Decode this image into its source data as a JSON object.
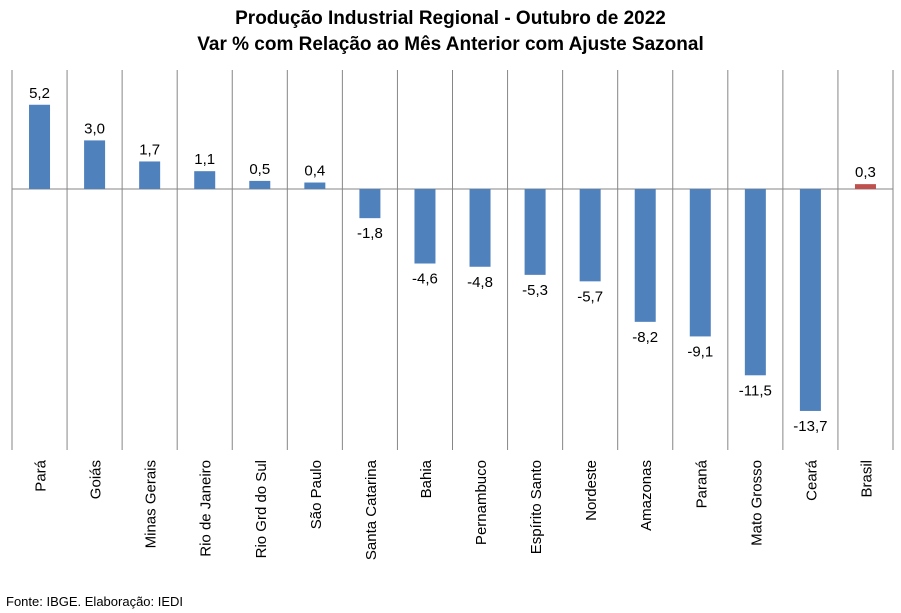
{
  "title": "Produção Industrial Regional  - Outubro de 2022",
  "subtitle": "Var % com Relação ao Mês Anterior com Ajuste Sazonal",
  "source": "Fonte: IBGE. Elaboração: IEDI",
  "colors": {
    "bar": "#4f81bd",
    "highlight": "#c0504d",
    "grid": "#868686"
  },
  "chart_data": {
    "type": "bar",
    "title": "Produção Industrial Regional  - Outubro de 2022",
    "subtitle": "Var % com Relação ao Mês Anterior com Ajuste Sazonal",
    "categories": [
      "Pará",
      "Goiás",
      "Minas Gerais",
      "Rio de Janeiro",
      "Rio Grd do Sul",
      "São Paulo",
      "Santa Catarina",
      "Bahia",
      "Pernambuco",
      "Espírito Santo",
      "Nordeste",
      "Amazonas",
      "Paraná",
      "Mato Grosso",
      "Ceará",
      "Brasil"
    ],
    "values": [
      5.2,
      3.0,
      1.7,
      1.1,
      0.5,
      0.4,
      -1.8,
      -4.6,
      -4.8,
      -5.3,
      -5.7,
      -8.2,
      -9.1,
      -11.5,
      -13.7,
      0.3
    ],
    "value_labels": [
      "5,2",
      "3,0",
      "1,7",
      "1,1",
      "0,5",
      "0,4",
      "-1,8",
      "-4,6",
      "-4,8",
      "-5,3",
      "-5,7",
      "-8,2",
      "-9,1",
      "-11,5",
      "-13,7",
      "0,3"
    ],
    "highlight": [
      "Brasil"
    ],
    "ylim": [
      -16,
      7
    ],
    "xlabel": "",
    "ylabel": "",
    "grid": "vertical category separators",
    "legend": "none"
  }
}
